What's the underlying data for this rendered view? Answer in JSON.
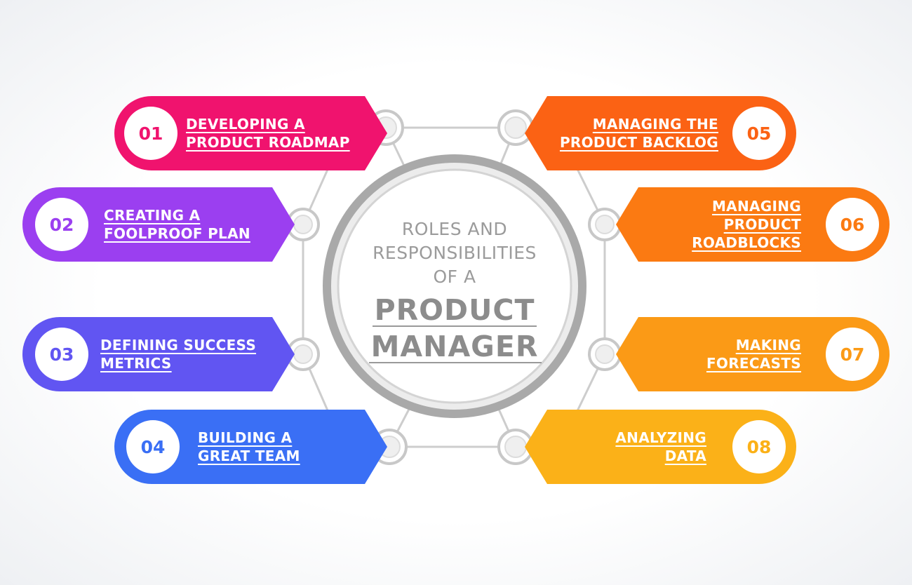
{
  "center": {
    "line1": "ROLES AND",
    "line2": "RESPONSIBILITIES",
    "line3": "OF A",
    "line4": "PRODUCT",
    "line5": "MANAGER"
  },
  "items": [
    {
      "number": "01",
      "lines": [
        "DEVELOPING A",
        "PRODUCT ROADMAP"
      ],
      "color": "#f0136e"
    },
    {
      "number": "02",
      "lines": [
        "CREATING A",
        "FOOLPROOF PLAN"
      ],
      "color": "#9b3ff0"
    },
    {
      "number": "03",
      "lines": [
        "DEFINING SUCCESS",
        "METRICS"
      ],
      "color": "#6155f2"
    },
    {
      "number": "04",
      "lines": [
        "BUILDING A",
        "GREAT TEAM"
      ],
      "color": "#3a6ff5"
    },
    {
      "number": "05",
      "lines": [
        "MANAGING THE",
        "PRODUCT BACKLOG"
      ],
      "color": "#fb6214"
    },
    {
      "number": "06",
      "lines": [
        "MANAGING",
        "PRODUCT",
        "ROADBLOCKS"
      ],
      "color": "#fb7a12"
    },
    {
      "number": "07",
      "lines": [
        "MAKING",
        "FORECASTS"
      ],
      "color": "#fb9a16"
    },
    {
      "number": "08",
      "lines": [
        "ANALYZING",
        "DATA"
      ],
      "color": "#fbb118"
    }
  ],
  "colors": {
    "connector": "#c4c4c4",
    "ring": "#a9a9a9",
    "center_text": "#8c8c8c"
  }
}
